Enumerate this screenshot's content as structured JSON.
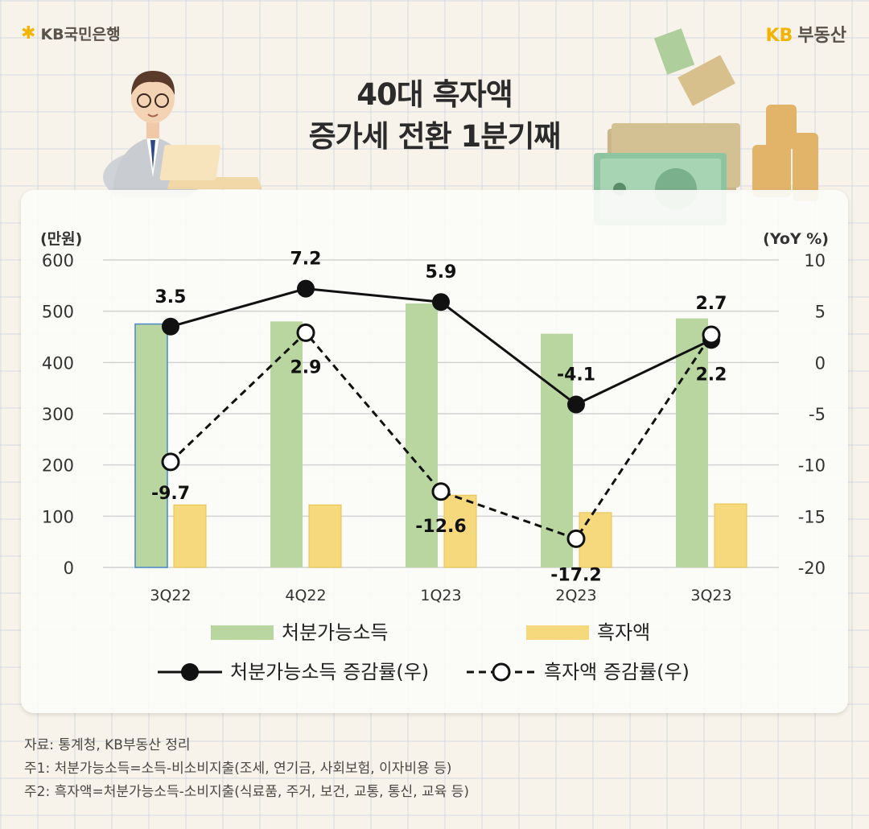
{
  "header": {
    "bank_logo": "KB국민은행",
    "brand": "KB",
    "brand_suffix": "부동산",
    "title_line1": "40대 흑자액",
    "title_line2": "증가세 전환 1분기째"
  },
  "icons": [
    "kb-star-icon",
    "businessman-illustration",
    "banknote-illustration",
    "coin-stack-illustration"
  ],
  "colors": {
    "disposable_bar": "#b9d6a0",
    "surplus_bar": "#f5d97c",
    "line": "#111111",
    "highlight_border": "#4a88c8"
  },
  "chart_data": {
    "type": "bar+line",
    "categories": [
      "3Q22",
      "4Q22",
      "1Q23",
      "2Q23",
      "3Q23"
    ],
    "y_left": {
      "label": "(만원)",
      "min": 0,
      "max": 600,
      "ticks": [
        0,
        100,
        200,
        300,
        400,
        500,
        600
      ]
    },
    "y_right": {
      "label": "(YoY %)",
      "min": -20,
      "max": 10,
      "ticks": [
        10,
        5,
        0,
        -5,
        -10,
        -15,
        -20
      ]
    },
    "grid": true,
    "legend_position": "bottom",
    "series": [
      {
        "name": "처분가능소득",
        "kind": "bar",
        "axis": "left",
        "values": [
          475,
          480,
          515,
          456,
          486
        ]
      },
      {
        "name": "흑자액",
        "kind": "bar",
        "axis": "left",
        "values": [
          122,
          122,
          141,
          107,
          124
        ]
      },
      {
        "name": "처분가능소득 증감률(우)",
        "kind": "line",
        "axis": "right",
        "style": "solid-filled",
        "values": [
          3.5,
          7.2,
          5.9,
          -4.1,
          2.2
        ],
        "labels": [
          "3.5",
          "7.2",
          "5.9",
          "-4.1",
          "2.2"
        ]
      },
      {
        "name": "흑자액 증감률(우)",
        "kind": "line",
        "axis": "right",
        "style": "dashed-hollow",
        "values": [
          -9.7,
          2.9,
          -12.6,
          -17.2,
          2.7
        ],
        "labels": [
          "-9.7",
          "2.9",
          "-12.6",
          "-17.2",
          "2.7"
        ]
      }
    ]
  },
  "footnotes": [
    "자료: 통계청, KB부동산 정리",
    "주1: 처분가능소득=소득-비소비지출(조세, 연기금, 사회보험, 이자비용 등)",
    "주2: 흑자액=처분가능소득-소비지출(식료품, 주거, 보건, 교통, 통신, 교육 등)"
  ]
}
